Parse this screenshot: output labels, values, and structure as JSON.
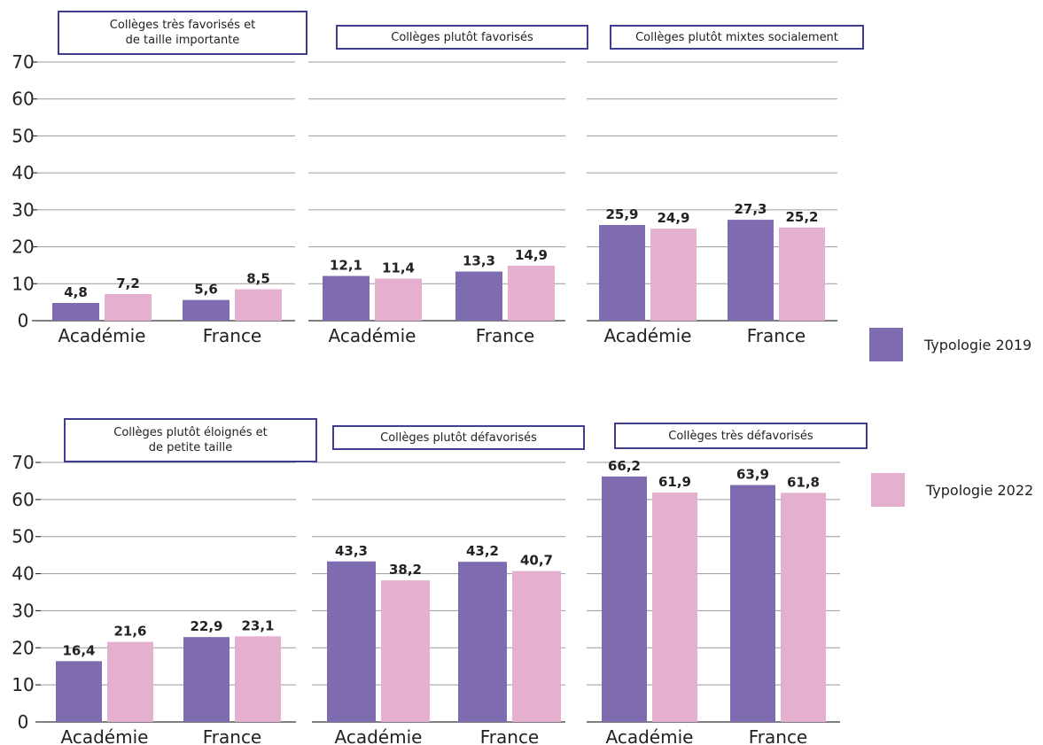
{
  "chart_data": [
    {
      "type": "bar",
      "title": "Collèges très favorisés et de taille importante",
      "categories": [
        "Académie",
        "France"
      ],
      "series": [
        {
          "name": "Typologie 2019",
          "values": [
            4.8,
            5.6
          ],
          "labels": [
            "4,8",
            "5,6"
          ]
        },
        {
          "name": "Typologie 2022",
          "values": [
            7.2,
            8.5
          ],
          "labels": [
            "7,2",
            "8,5"
          ]
        }
      ],
      "ylim": [
        0,
        70
      ],
      "yticks": [
        0,
        10,
        20,
        30,
        40,
        50,
        60,
        70
      ],
      "grid": true
    },
    {
      "type": "bar",
      "title": "Collèges plutôt favorisés",
      "categories": [
        "Académie",
        "France"
      ],
      "series": [
        {
          "name": "Typologie 2019",
          "values": [
            12.1,
            13.3
          ],
          "labels": [
            "12,1",
            "13,3"
          ]
        },
        {
          "name": "Typologie 2022",
          "values": [
            11.4,
            14.9
          ],
          "labels": [
            "11,4",
            "14,9"
          ]
        }
      ],
      "ylim": [
        0,
        70
      ],
      "grid": true
    },
    {
      "type": "bar",
      "title": "Collèges plutôt mixtes socialement",
      "categories": [
        "Académie",
        "France"
      ],
      "series": [
        {
          "name": "Typologie 2019",
          "values": [
            25.9,
            27.3
          ],
          "labels": [
            "25,9",
            "27,3"
          ]
        },
        {
          "name": "Typologie 2022",
          "values": [
            24.9,
            25.2
          ],
          "labels": [
            "24,9",
            "25,2"
          ]
        }
      ],
      "ylim": [
        0,
        70
      ],
      "grid": true
    },
    {
      "type": "bar",
      "title": "Collèges plutôt éloignés et de petite taille",
      "categories": [
        "Académie",
        "France"
      ],
      "series": [
        {
          "name": "Typologie 2019",
          "values": [
            16.4,
            22.9
          ],
          "labels": [
            "16,4",
            "22,9"
          ]
        },
        {
          "name": "Typologie 2022",
          "values": [
            21.6,
            23.1
          ],
          "labels": [
            "21,6",
            "23,1"
          ]
        }
      ],
      "ylim": [
        0,
        70
      ],
      "yticks": [
        0,
        10,
        20,
        30,
        40,
        50,
        60,
        70
      ],
      "grid": true
    },
    {
      "type": "bar",
      "title": "Collèges plutôt défavorisés",
      "categories": [
        "Académie",
        "France"
      ],
      "series": [
        {
          "name": "Typologie 2019",
          "values": [
            43.3,
            43.2
          ],
          "labels": [
            "43,3",
            "43,2"
          ]
        },
        {
          "name": "Typologie 2022",
          "values": [
            38.2,
            40.7
          ],
          "labels": [
            "38,2",
            "40,7"
          ]
        }
      ],
      "ylim": [
        0,
        70
      ],
      "grid": true
    },
    {
      "type": "bar",
      "title": "Collèges très défavorisés",
      "categories": [
        "Académie",
        "France"
      ],
      "series": [
        {
          "name": "Typologie 2019",
          "values": [
            66.2,
            63.9
          ],
          "labels": [
            "66,2",
            "63,9"
          ]
        },
        {
          "name": "Typologie 2022",
          "values": [
            61.9,
            61.8
          ],
          "labels": [
            "61,9",
            "61,8"
          ]
        }
      ],
      "ylim": [
        0,
        70
      ],
      "grid": true
    }
  ],
  "titles": [
    [
      "Collèges très favorisés et",
      "de taille importante"
    ],
    [
      "Collèges plutôt favorisés"
    ],
    [
      "Collèges plutôt mixtes socialement"
    ],
    [
      "Collèges plutôt éloignés et",
      "de petite taille"
    ],
    [
      "Collèges plutôt défavorisés"
    ],
    [
      "Collèges très défavorisés"
    ]
  ],
  "legend": [
    {
      "label": "Typologie 2019",
      "color": "#7f6bb0"
    },
    {
      "label": "Typologie 2022",
      "color": "#e5b0d0"
    }
  ],
  "colors": {
    "series_2019": "#7f6bb0",
    "series_2022": "#e5b0d0",
    "title_border": "#3e3d8f"
  }
}
